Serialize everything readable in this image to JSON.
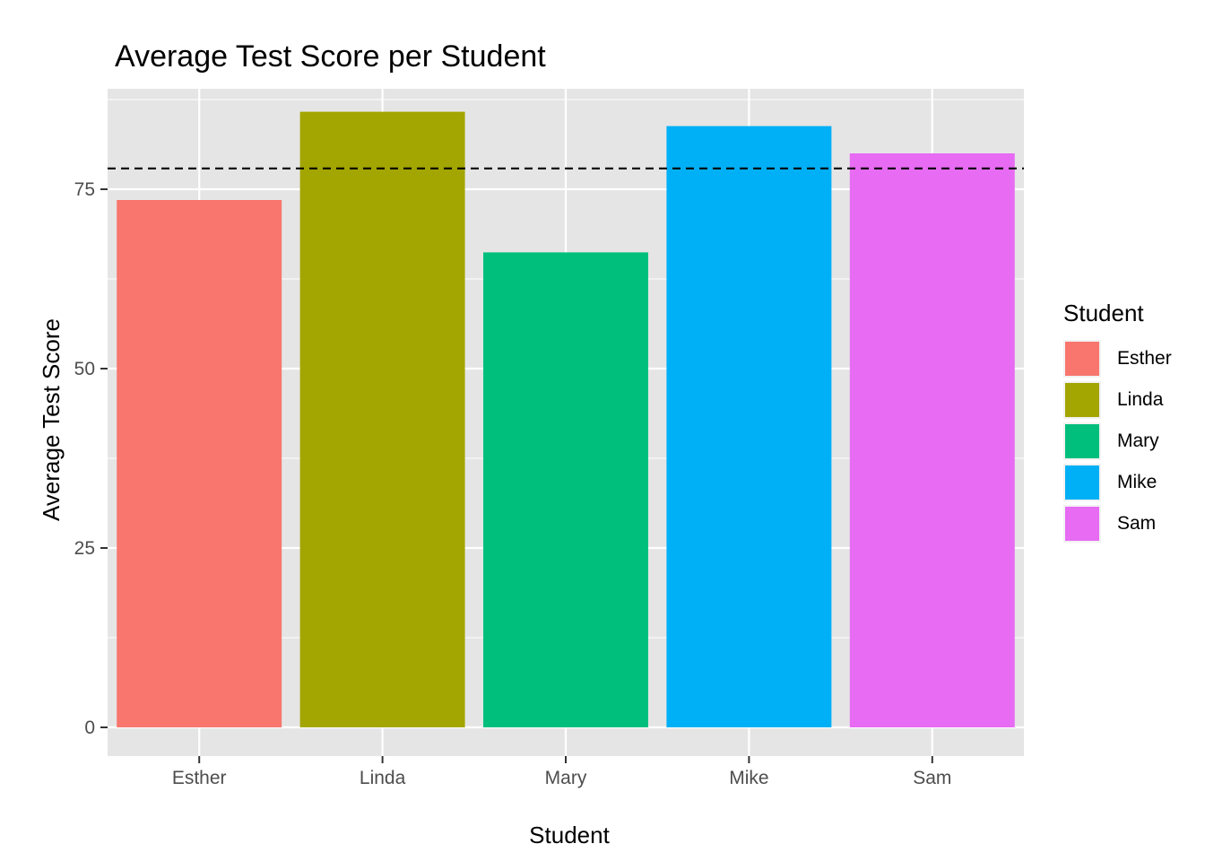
{
  "chart_data": {
    "type": "bar",
    "title": "Average Test Score per Student",
    "xlabel": "Student",
    "ylabel": "Average Test Score",
    "categories": [
      "Esther",
      "Linda",
      "Mary",
      "Mike",
      "Sam"
    ],
    "values": [
      73.5,
      85.8,
      66.2,
      83.8,
      80.0
    ],
    "colors": [
      "#F8766D",
      "#A3A500",
      "#00BF7D",
      "#00B0F6",
      "#E76BF3"
    ],
    "ylim": [
      -4,
      89
    ],
    "yticks": [
      0,
      25,
      50,
      75
    ],
    "reference_line": {
      "value": 77.9,
      "style": "dashed",
      "color": "#000000"
    },
    "grid": true,
    "panel_background": "#E5E5E5",
    "legend": {
      "title": "Student",
      "placement": "right",
      "items": [
        "Esther",
        "Linda",
        "Mary",
        "Mike",
        "Sam"
      ]
    }
  }
}
